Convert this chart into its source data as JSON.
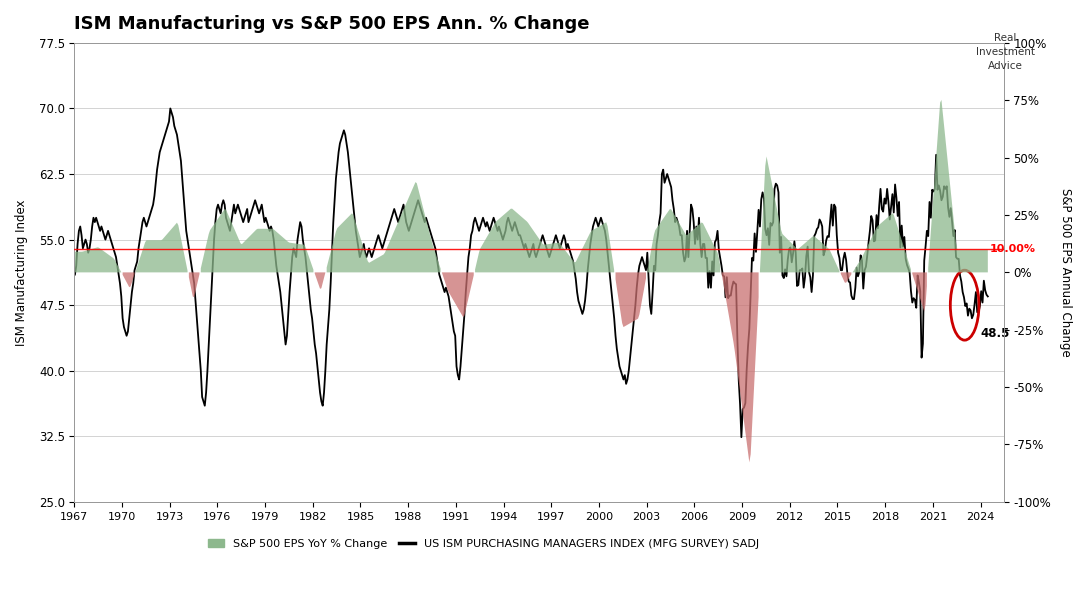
{
  "title": "ISM Manufacturing vs S&P 500 EPS Ann. % Change",
  "ylabel_left": "ISM Manufacturing Index",
  "ylabel_right": "S&P 500 EPS Annual Change",
  "ylim_left": [
    25,
    77.5
  ],
  "ylim_right": [
    -1.0,
    1.0
  ],
  "yticks_left": [
    25,
    32.5,
    40,
    47.5,
    55,
    62.5,
    70,
    77.5
  ],
  "yticks_right": [
    -1.0,
    -0.75,
    -0.5,
    -0.25,
    0.0,
    0.25,
    0.5,
    0.75,
    1.0
  ],
  "ytick_labels_right": [
    "-100%",
    "-75%",
    "-50%",
    "-25%",
    "0%",
    "25%",
    "50%",
    "75%",
    "100%"
  ],
  "background_color": "#ffffff",
  "grid_color": "#cccccc",
  "ism_line_color": "#000000",
  "eps_fill_positive_color": "#8db88d",
  "eps_fill_negative_color": "#c97070",
  "circle_color": "#cc0000",
  "watermark_text": "Real\nInvestment\nAdvice",
  "annotation_eps": "10.00%",
  "annotation_ism": "48.5",
  "eps_hline": 0.1,
  "xlim": [
    1967,
    2025
  ],
  "xticks": [
    1967,
    1970,
    1973,
    1976,
    1979,
    1982,
    1985,
    1988,
    1991,
    1994,
    1997,
    2000,
    2003,
    2006,
    2009,
    2012,
    2015,
    2018,
    2021,
    2024
  ]
}
